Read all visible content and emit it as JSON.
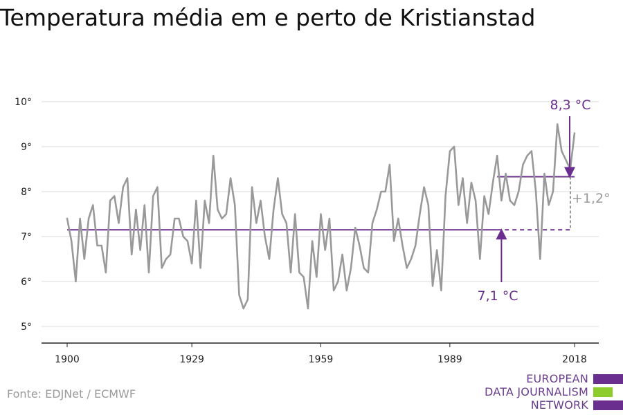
{
  "page": {
    "title": "Temperatura média em e perto de Kristianstad"
  },
  "source": {
    "text": "Fonte: EDJNet / ECMWF"
  },
  "logo": {
    "lines": [
      "EUROPEAN",
      "DATA JOURNALISM",
      "NETWORK"
    ],
    "text_color": "#6a3d8f",
    "bar_colors": [
      "#6a2f8e",
      "#8ccc2c",
      "#6a2f8e"
    ]
  },
  "chart_data": {
    "type": "line",
    "title": "",
    "xlabel": "",
    "ylabel": "",
    "xlim": [
      1900,
      2018
    ],
    "ylim": [
      5,
      10
    ],
    "x_ticks": [
      1900,
      1929,
      1959,
      1989,
      2018
    ],
    "y_ticks": [
      {
        "value": 5,
        "label": "5°"
      },
      {
        "value": 6,
        "label": "6°"
      },
      {
        "value": 7,
        "label": "7°"
      },
      {
        "value": 8,
        "label": "8°"
      },
      {
        "value": 9,
        "label": "9°"
      },
      {
        "value": 10,
        "label": "10°"
      }
    ],
    "grid": true,
    "series": [
      {
        "color": "#999999",
        "x_start": 1900,
        "values": [
          7.4,
          6.9,
          6.0,
          7.4,
          6.5,
          7.4,
          7.7,
          6.8,
          6.8,
          6.2,
          7.8,
          7.9,
          7.3,
          8.1,
          8.3,
          6.6,
          7.6,
          6.7,
          7.7,
          6.2,
          7.9,
          8.1,
          6.3,
          6.5,
          6.6,
          7.4,
          7.4,
          7.0,
          6.9,
          6.4,
          7.8,
          6.3,
          7.8,
          7.3,
          8.8,
          7.6,
          7.4,
          7.5,
          8.3,
          7.7,
          5.7,
          5.4,
          5.6,
          8.1,
          7.3,
          7.8,
          7.0,
          6.5,
          7.6,
          8.3,
          7.5,
          7.3,
          6.2,
          7.5,
          6.2,
          6.1,
          5.4,
          6.9,
          6.1,
          7.5,
          6.7,
          7.4,
          5.8,
          6.0,
          6.6,
          5.8,
          6.3,
          7.2,
          6.8,
          6.3,
          6.2,
          7.3,
          7.6,
          8.0,
          8.0,
          8.6,
          6.9,
          7.4,
          6.8,
          6.3,
          6.5,
          6.8,
          7.5,
          8.1,
          7.7,
          5.9,
          6.7,
          5.8,
          7.9,
          8.9,
          9.0,
          7.7,
          8.3,
          7.3,
          8.2,
          7.8,
          6.5,
          7.9,
          7.5,
          8.2,
          8.8,
          7.8,
          8.4,
          7.8,
          7.7,
          8.0,
          8.6,
          8.8,
          8.9,
          8.0,
          6.5,
          8.4,
          7.7,
          8.0,
          9.5,
          8.9,
          8.7,
          8.5,
          9.3
        ]
      }
    ],
    "reference_lines": [
      {
        "label": "7,1 °C",
        "value": 7.15,
        "x_from": 1900,
        "x_to": 2018,
        "solid_until": 2000,
        "color": "#6a2f8e"
      },
      {
        "label": "8,3 °C",
        "value": 8.33,
        "x_from": 2000,
        "x_to": 2018,
        "color": "#6a2f8e"
      }
    ],
    "difference_label": "+1,2°",
    "difference_color": "#999999"
  }
}
